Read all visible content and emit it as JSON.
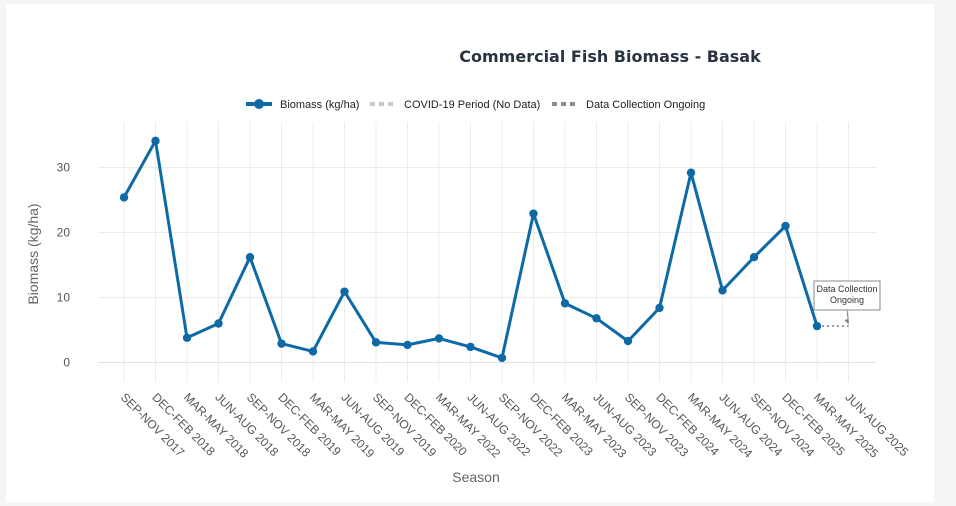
{
  "chart_data": {
    "type": "line",
    "title": "Commercial Fish Biomass - Basak",
    "xlabel": "Season",
    "ylabel": "Biomass (kg/ha)",
    "ylim": [
      -3,
      37
    ],
    "yticks": [
      0,
      10,
      20,
      30
    ],
    "grid": true,
    "legend_position": "top-center",
    "categories": [
      "SEP-NOV 2017",
      "DEC-FEB 2018",
      "MAR-MAY 2018",
      "JUN-AUG 2018",
      "SEP-NOV 2018",
      "DEC-FEB 2019",
      "MAR-MAY 2019",
      "JUN-AUG 2019",
      "SEP-NOV 2019",
      "DEC-FEB 2020",
      "MAR-MAY 2022",
      "JUN-AUG 2022",
      "SEP-NOV 2022",
      "DEC-FEB 2023",
      "MAR-MAY 2023",
      "JUN-AUG 2023",
      "SEP-NOV 2023",
      "DEC-FEB 2024",
      "MAR-MAY 2024",
      "JUN-AUG 2024",
      "SEP-NOV 2024",
      "DEC-FEB 2025",
      "MAR-MAY 2025",
      "JUN-AUG 2025"
    ],
    "series": [
      {
        "name": "Biomass (kg/ha)",
        "color": "#0d6aa6",
        "style": "solid-markers",
        "values": [
          25.4,
          34.1,
          3.8,
          6.0,
          16.2,
          2.9,
          1.7,
          10.9,
          3.1,
          2.7,
          3.7,
          2.4,
          0.7,
          22.9,
          9.1,
          6.8,
          3.3,
          8.4,
          29.2,
          11.1,
          16.2,
          21.0,
          5.6,
          null
        ]
      },
      {
        "name": "COVID-19 Period (No Data)",
        "color": "#c8c8c8",
        "style": "dotted",
        "x": [
          "DEC-FEB 2020",
          "MAR-MAY 2022"
        ],
        "values": [
          2.7,
          3.7
        ]
      },
      {
        "name": "Data Collection Ongoing",
        "color": "#8a8a8a",
        "style": "dotted",
        "x": [
          "MAR-MAY 2025",
          "JUN-AUG 2025"
        ],
        "values": [
          5.6,
          5.6
        ]
      }
    ],
    "annotations": [
      {
        "text_lines": [
          "Data Collection",
          "Ongoing"
        ],
        "x": "JUN-AUG 2025",
        "y": 5.6
      }
    ]
  }
}
